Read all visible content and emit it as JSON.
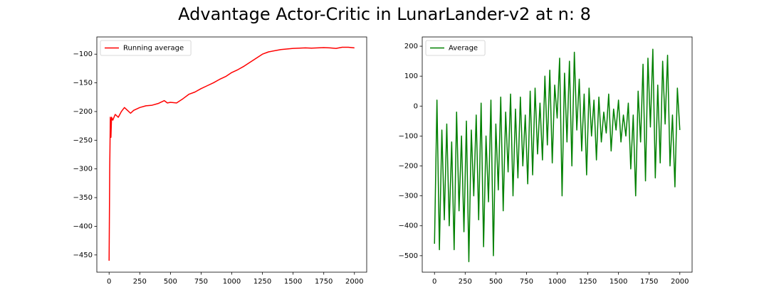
{
  "title": "Advantage Actor-Critic in LunarLander-v2 at n: 8",
  "chart_data": [
    {
      "type": "line",
      "x": [
        0,
        5,
        10,
        15,
        20,
        30,
        50,
        75,
        100,
        125,
        150,
        175,
        200,
        250,
        300,
        350,
        400,
        450,
        475,
        500,
        550,
        600,
        650,
        700,
        750,
        800,
        850,
        900,
        950,
        1000,
        1050,
        1100,
        1150,
        1200,
        1250,
        1300,
        1400,
        1500,
        1600,
        1650,
        1700,
        1750,
        1800,
        1850,
        1900,
        1950,
        2000
      ],
      "series": [
        {
          "name": "Running average",
          "color": "#ff0000",
          "values": [
            -460,
            -300,
            -210,
            -245,
            -210,
            -215,
            -205,
            -210,
            -200,
            -193,
            -198,
            -203,
            -198,
            -193,
            -190,
            -189,
            -186,
            -181,
            -185,
            -184,
            -185,
            -178,
            -170,
            -166,
            -160,
            -155,
            -150,
            -144,
            -139,
            -132,
            -127,
            -121,
            -114,
            -107,
            -100,
            -96,
            -92,
            -90,
            -89,
            -89.5,
            -89,
            -88.5,
            -89,
            -90,
            -88,
            -88,
            -89
          ]
        }
      ],
      "xlim": [
        -100,
        2100
      ],
      "xticks": [
        0,
        250,
        500,
        750,
        1000,
        1250,
        1500,
        1750,
        2000
      ],
      "ylim": [
        -480,
        -70
      ],
      "yticks": [
        {
          "value": -450,
          "label": "−450"
        },
        {
          "value": -400,
          "label": "−400"
        },
        {
          "value": -350,
          "label": "−350"
        },
        {
          "value": -300,
          "label": "−300"
        },
        {
          "value": -250,
          "label": "−250"
        },
        {
          "value": -200,
          "label": "−200"
        },
        {
          "value": -150,
          "label": "−150"
        },
        {
          "value": -100,
          "label": "−100"
        }
      ],
      "legend": "upper left",
      "grid": false
    },
    {
      "type": "line",
      "x": [
        0,
        20,
        40,
        60,
        80,
        100,
        120,
        140,
        160,
        180,
        200,
        220,
        240,
        260,
        280,
        300,
        320,
        340,
        360,
        380,
        400,
        420,
        440,
        460,
        480,
        500,
        520,
        540,
        560,
        580,
        600,
        620,
        640,
        660,
        680,
        700,
        720,
        740,
        760,
        780,
        800,
        820,
        840,
        860,
        880,
        900,
        920,
        940,
        960,
        980,
        1000,
        1020,
        1040,
        1060,
        1080,
        1100,
        1120,
        1140,
        1160,
        1180,
        1200,
        1220,
        1240,
        1260,
        1280,
        1300,
        1320,
        1340,
        1360,
        1380,
        1400,
        1420,
        1440,
        1460,
        1480,
        1500,
        1520,
        1540,
        1560,
        1580,
        1600,
        1620,
        1640,
        1660,
        1680,
        1700,
        1720,
        1740,
        1760,
        1780,
        1800,
        1820,
        1840,
        1860,
        1880,
        1900,
        1920,
        1940,
        1960,
        1980,
        2000
      ],
      "series": [
        {
          "name": "Average",
          "color": "#008000",
          "values": [
            -460,
            20,
            -480,
            -80,
            -380,
            -60,
            -400,
            -120,
            -480,
            -20,
            -350,
            -100,
            -420,
            -50,
            -520,
            -80,
            -300,
            -30,
            -380,
            10,
            -470,
            -100,
            -320,
            20,
            -500,
            -60,
            -280,
            30,
            -350,
            -20,
            -220,
            40,
            -300,
            -10,
            -240,
            30,
            -200,
            -30,
            -260,
            50,
            -230,
            60,
            -160,
            10,
            -180,
            100,
            -130,
            120,
            -190,
            70,
            -40,
            160,
            -300,
            110,
            -120,
            150,
            -200,
            180,
            -80,
            90,
            -150,
            40,
            -230,
            60,
            -100,
            20,
            -180,
            30,
            -120,
            -20,
            -90,
            40,
            -150,
            -10,
            -80,
            20,
            -120,
            -30,
            -100,
            10,
            -210,
            -30,
            -300,
            50,
            -120,
            140,
            -250,
            160,
            -70,
            190,
            -240,
            70,
            -190,
            150,
            -60,
            170,
            -200,
            -30,
            -270,
            60,
            -80
          ]
        }
      ],
      "xlim": [
        -100,
        2100
      ],
      "xticks": [
        0,
        250,
        500,
        750,
        1000,
        1250,
        1500,
        1750,
        2000
      ],
      "ylim": [
        -555,
        231
      ],
      "yticks": [
        {
          "value": -500,
          "label": "−500"
        },
        {
          "value": -400,
          "label": "−400"
        },
        {
          "value": -300,
          "label": "−300"
        },
        {
          "value": -200,
          "label": "−200"
        },
        {
          "value": -100,
          "label": "−100"
        },
        0,
        100,
        200
      ],
      "legend": "upper left",
      "grid": false
    }
  ]
}
